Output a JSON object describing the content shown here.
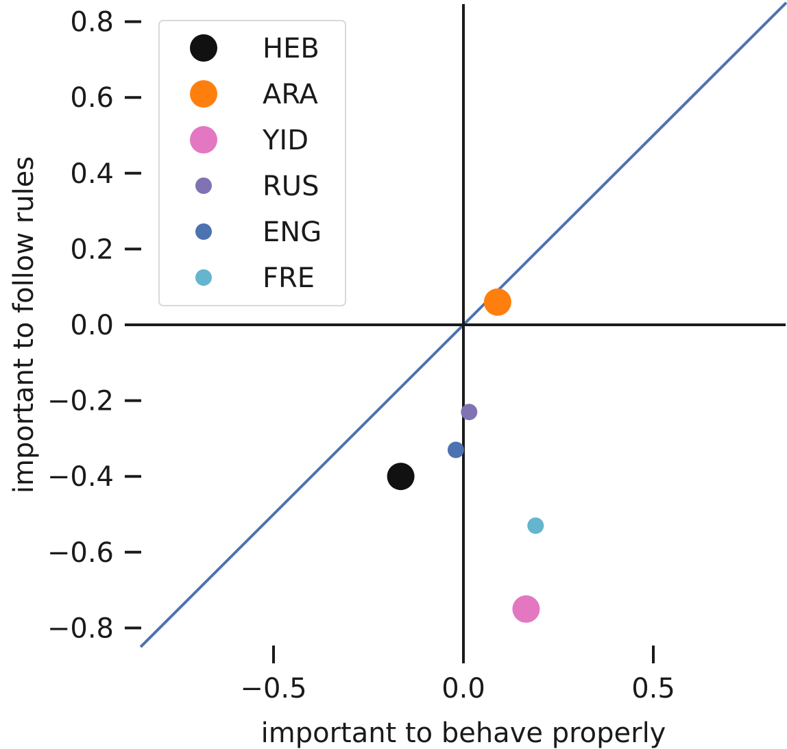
{
  "chart_data": {
    "type": "scatter",
    "title": "",
    "xlabel": "important to behave properly",
    "ylabel": "important to follow rules",
    "xlim": [
      -0.85,
      0.85
    ],
    "ylim": [
      -0.85,
      0.85
    ],
    "xticks": [
      {
        "value": -0.5,
        "label": "−0.5"
      },
      {
        "value": 0.0,
        "label": "0.0"
      },
      {
        "value": 0.5,
        "label": "0.5"
      }
    ],
    "yticks": [
      {
        "value": 0.8,
        "label": "0.8"
      },
      {
        "value": 0.6,
        "label": "0.6"
      },
      {
        "value": 0.4,
        "label": "0.4"
      },
      {
        "value": 0.2,
        "label": "0.2"
      },
      {
        "value": 0.0,
        "label": "0.0"
      },
      {
        "value": -0.2,
        "label": "−0.2"
      },
      {
        "value": -0.4,
        "label": "−0.4"
      },
      {
        "value": -0.6,
        "label": "−0.6"
      },
      {
        "value": -0.8,
        "label": "−0.8"
      }
    ],
    "grid": false,
    "legend_position": "top-left",
    "reference_lines": {
      "diagonal": {
        "from": [
          -0.85,
          -0.85
        ],
        "to": [
          0.85,
          0.85
        ],
        "color": "#4c72b0"
      },
      "horizontal_zero": true,
      "vertical_zero": true
    },
    "series": [
      {
        "name": "HEB",
        "x": -0.165,
        "y": -0.4,
        "color": "#111111",
        "size": "large"
      },
      {
        "name": "ARA",
        "x": 0.09,
        "y": 0.06,
        "color": "#ff7f0e",
        "size": "large"
      },
      {
        "name": "YID",
        "x": 0.165,
        "y": -0.75,
        "color": "#e377c2",
        "size": "large"
      },
      {
        "name": "RUS",
        "x": 0.015,
        "y": -0.23,
        "color": "#8172b3",
        "size": "small"
      },
      {
        "name": "ENG",
        "x": -0.02,
        "y": -0.33,
        "color": "#4c72b0",
        "size": "small"
      },
      {
        "name": "FRE",
        "x": 0.19,
        "y": -0.53,
        "color": "#64b5cd",
        "size": "small"
      }
    ]
  }
}
